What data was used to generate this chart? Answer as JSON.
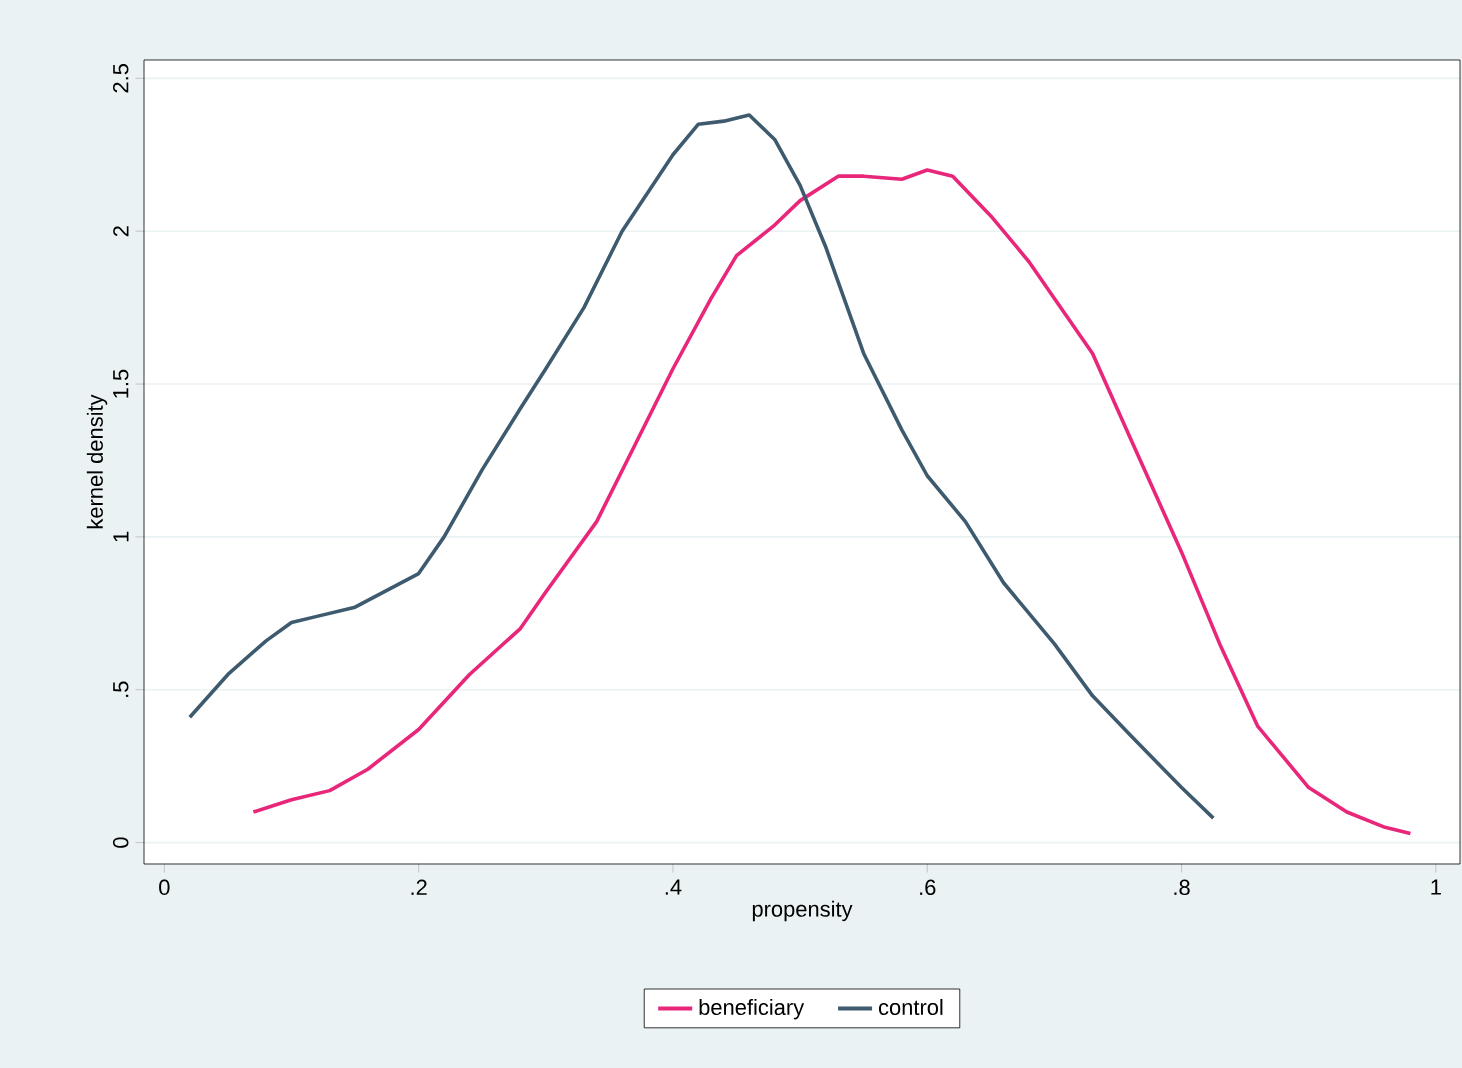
{
  "chart_data": {
    "type": "line",
    "xlabel": "propensity",
    "ylabel": "kernel density",
    "xlim": [
      -0.016,
      1.019
    ],
    "ylim": [
      -0.07,
      2.56
    ],
    "xticks": [
      0,
      {
        "value": 0.2,
        "label": ".2"
      },
      {
        "value": 0.4,
        "label": ".4"
      },
      {
        "value": 0.6,
        "label": ".6"
      },
      {
        "value": 0.8,
        "label": ".8"
      },
      1
    ],
    "yticks": [
      0,
      {
        "value": 0.5,
        "label": ".5"
      },
      1,
      1.5,
      2,
      2.5
    ],
    "grid": "y",
    "legend": "bottom",
    "marker": "none",
    "line_style": "solid",
    "series": [
      {
        "name": "beneficiary",
        "color": "#e8267a",
        "x": [
          0.07,
          0.1,
          0.13,
          0.16,
          0.2,
          0.24,
          0.28,
          0.3,
          0.34,
          0.37,
          0.4,
          0.43,
          0.45,
          0.48,
          0.5,
          0.53,
          0.55,
          0.58,
          0.6,
          0.62,
          0.65,
          0.68,
          0.7,
          0.73,
          0.76,
          0.8,
          0.83,
          0.86,
          0.9,
          0.93,
          0.96,
          0.98
        ],
        "values": [
          0.1,
          0.14,
          0.17,
          0.24,
          0.37,
          0.55,
          0.7,
          0.82,
          1.05,
          1.3,
          1.55,
          1.78,
          1.92,
          2.02,
          2.1,
          2.18,
          2.18,
          2.17,
          2.2,
          2.18,
          2.05,
          1.9,
          1.78,
          1.6,
          1.32,
          0.95,
          0.65,
          0.38,
          0.18,
          0.1,
          0.05,
          0.03
        ]
      },
      {
        "name": "control",
        "color": "#3e5a6e",
        "x": [
          0.02,
          0.05,
          0.08,
          0.1,
          0.12,
          0.15,
          0.2,
          0.22,
          0.25,
          0.28,
          0.3,
          0.33,
          0.36,
          0.4,
          0.42,
          0.44,
          0.46,
          0.48,
          0.5,
          0.52,
          0.55,
          0.58,
          0.6,
          0.63,
          0.66,
          0.7,
          0.73,
          0.76,
          0.8,
          0.825
        ],
        "values": [
          0.41,
          0.55,
          0.66,
          0.72,
          0.74,
          0.77,
          0.88,
          1.0,
          1.22,
          1.42,
          1.55,
          1.75,
          2.0,
          2.25,
          2.35,
          2.36,
          2.38,
          2.3,
          2.15,
          1.95,
          1.6,
          1.35,
          1.2,
          1.05,
          0.85,
          0.65,
          0.48,
          0.35,
          0.18,
          0.08
        ]
      }
    ]
  }
}
